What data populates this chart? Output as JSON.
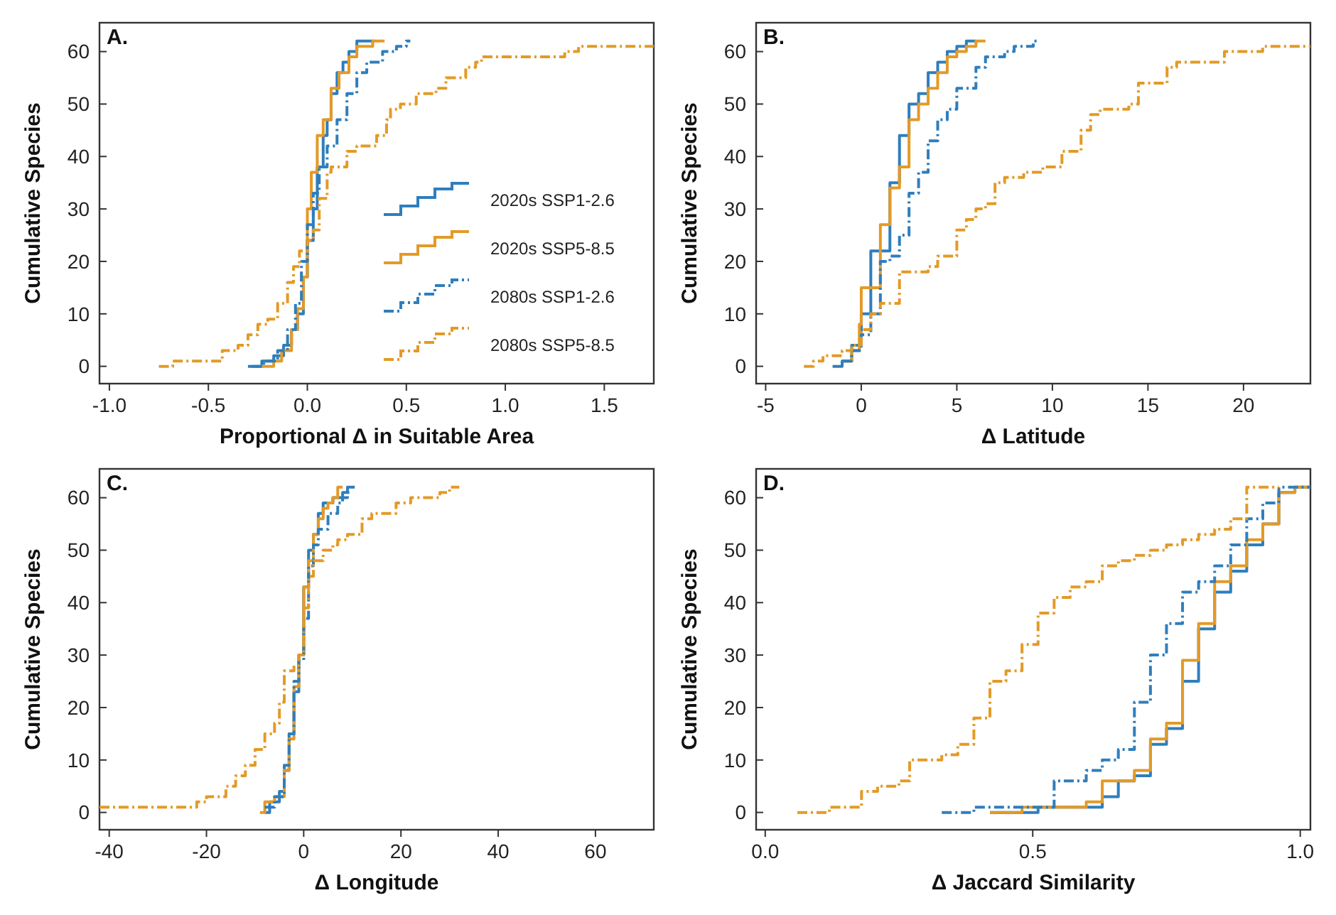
{
  "chart_data": [
    {
      "type": "step",
      "title": "A.",
      "xlabel": "Proportional Δ in Suitable Area",
      "ylabel": "Cumulative Species",
      "xlim": [
        -1.05,
        1.75
      ],
      "ylim": [
        -3.3,
        65.5
      ],
      "xticks": [
        {
          "value": -1,
          "label": "-1.0"
        },
        {
          "value": -0.5,
          "label": "-0.5"
        },
        {
          "value": 0,
          "label": "0.0"
        },
        {
          "value": 0.5,
          "label": "0.5"
        },
        {
          "value": 1,
          "label": "1.0"
        },
        {
          "value": 1.5,
          "label": "1.5"
        }
      ],
      "yticks": [
        0,
        10,
        20,
        30,
        40,
        50,
        60
      ],
      "grid": false,
      "legend": "bottom right",
      "series": [
        {
          "name": "2020s SSP1-2.6",
          "color": "#2f7ebc",
          "line_style": "solid",
          "x": [
            -0.3,
            -0.23,
            -0.17,
            -0.12,
            -0.08,
            -0.05,
            -0.02,
            0.0,
            0.03,
            0.05,
            0.08,
            0.1,
            0.12,
            0.15,
            0.18,
            0.21,
            0.25,
            0.34
          ],
          "values": [
            0,
            1,
            2,
            4,
            7,
            10,
            17,
            24,
            30,
            38,
            44,
            47,
            52,
            56,
            58,
            60,
            62,
            62
          ]
        },
        {
          "name": "2020s SSP5-8.5",
          "color": "#e39a27",
          "line_style": "solid",
          "x": [
            -0.25,
            -0.17,
            -0.13,
            -0.08,
            -0.05,
            -0.02,
            0.0,
            0.02,
            0.05,
            0.08,
            0.12,
            0.16,
            0.21,
            0.25,
            0.33,
            0.39
          ],
          "values": [
            0,
            1,
            3,
            7,
            11,
            17,
            30,
            37,
            44,
            47,
            53,
            56,
            59,
            61,
            62,
            62
          ]
        },
        {
          "name": "2080s SSP1-2.6",
          "color": "#2f7ebc",
          "line_style": "dashed",
          "x": [
            -0.28,
            -0.22,
            -0.15,
            -0.1,
            -0.06,
            -0.03,
            0.0,
            0.03,
            0.06,
            0.1,
            0.15,
            0.2,
            0.25,
            0.3,
            0.38,
            0.45,
            0.5,
            0.52
          ],
          "values": [
            0,
            1,
            3,
            7,
            12,
            20,
            27,
            33,
            38,
            42,
            47,
            52,
            56,
            58,
            60,
            61,
            62,
            62
          ]
        },
        {
          "name": "2080s SSP5-8.5",
          "color": "#e39a27",
          "line_style": "dashed",
          "x": [
            -0.75,
            -0.68,
            -0.43,
            -0.35,
            -0.3,
            -0.25,
            -0.2,
            -0.15,
            -0.1,
            -0.07,
            -0.04,
            0.0,
            0.03,
            0.06,
            0.1,
            0.12,
            0.2,
            0.25,
            0.35,
            0.4,
            0.42,
            0.47,
            0.55,
            0.65,
            0.7,
            0.8,
            0.85,
            0.88,
            1.3,
            1.37,
            1.75
          ],
          "values": [
            0,
            1,
            3,
            4,
            6,
            8,
            9,
            12,
            16,
            19,
            22,
            24,
            26,
            32,
            37,
            38,
            41,
            42,
            44,
            47,
            49,
            50,
            52,
            53,
            55,
            57,
            58,
            59,
            60,
            61,
            61
          ]
        }
      ]
    },
    {
      "type": "step",
      "title": "B.",
      "xlabel": "Δ Latitude",
      "ylabel": "Cumulative Species",
      "xlim": [
        -5.5,
        23.5
      ],
      "ylim": [
        -3.3,
        65.5
      ],
      "xticks": [
        -5,
        0,
        5,
        10,
        15,
        20
      ],
      "yticks": [
        0,
        10,
        20,
        30,
        40,
        50,
        60
      ],
      "grid": false,
      "legend": false,
      "series": [
        {
          "color": "#2f7ebc",
          "line_style": "solid",
          "x": [
            -1.5,
            -1.0,
            -0.5,
            0,
            0.5,
            1.5,
            2.0,
            2.5,
            3.0,
            3.5,
            4.0,
            4.5,
            5.0,
            5.5,
            6.0
          ],
          "values": [
            0,
            1,
            4,
            10,
            22,
            35,
            44,
            50,
            52,
            56,
            58,
            60,
            61,
            62,
            62
          ]
        },
        {
          "color": "#e39a27",
          "line_style": "solid",
          "x": [
            -1.0,
            -0.5,
            -0.1,
            0,
            1.0,
            1.5,
            2.0,
            2.5,
            3.0,
            3.5,
            4.0,
            4.5,
            5.0,
            5.5,
            6.0,
            6.5
          ],
          "values": [
            1,
            3,
            8,
            15,
            27,
            34,
            38,
            47,
            50,
            53,
            56,
            59,
            60,
            61,
            62,
            62
          ]
        },
        {
          "color": "#2f7ebc",
          "line_style": "dashed",
          "x": [
            -1.0,
            -0.5,
            0,
            0.5,
            1.0,
            1.5,
            2.0,
            2.5,
            3.0,
            3.5,
            4.0,
            4.5,
            5.0,
            6.0,
            6.5,
            7.5,
            8.0,
            9.0,
            9.3
          ],
          "values": [
            1,
            3,
            6,
            10,
            20,
            21,
            25,
            33,
            37,
            43,
            47,
            49,
            53,
            57,
            59,
            60,
            61,
            62,
            62
          ]
        },
        {
          "color": "#e39a27",
          "line_style": "dashed",
          "x": [
            -3.0,
            -2.5,
            -2.0,
            -1.0,
            -0.5,
            0,
            0.5,
            1.0,
            2.0,
            3.5,
            4.0,
            5.0,
            5.5,
            6.0,
            6.5,
            7.0,
            7.5,
            8.5,
            9.5,
            10.5,
            11.5,
            12.0,
            12.5,
            14.0,
            14.5,
            16.0,
            16.5,
            19.0,
            21.0,
            23.5
          ],
          "values": [
            0,
            1,
            2,
            3,
            4,
            7,
            10,
            12,
            18,
            19,
            21,
            26,
            28,
            30,
            31,
            35,
            36,
            37,
            38,
            41,
            45,
            48,
            49,
            50,
            54,
            57,
            58,
            60,
            61,
            61
          ]
        }
      ]
    },
    {
      "type": "step",
      "title": "C.",
      "xlabel": "Δ Longitude",
      "ylabel": "Cumulative Species",
      "xlim": [
        -42,
        72
      ],
      "ylim": [
        -3.3,
        65.5
      ],
      "xticks": [
        -40,
        -20,
        0,
        20,
        40,
        60
      ],
      "yticks": [
        0,
        10,
        20,
        30,
        40,
        50,
        60
      ],
      "grid": false,
      "legend": false,
      "series": [
        {
          "color": "#2f7ebc",
          "line_style": "solid",
          "x": [
            -8,
            -7,
            -5,
            -4,
            -3,
            -2,
            -1,
            0,
            1,
            2,
            3,
            4,
            6,
            8,
            9,
            10.5
          ],
          "values": [
            0,
            2,
            4,
            8,
            15,
            23,
            30,
            43,
            50,
            53,
            57,
            59,
            60,
            61,
            62,
            62
          ]
        },
        {
          "color": "#e39a27",
          "line_style": "solid",
          "x": [
            -9,
            -8,
            -6,
            -4,
            -3,
            -2,
            -1,
            0,
            1,
            2,
            3,
            4,
            5,
            6,
            7,
            8
          ],
          "values": [
            0,
            2,
            3,
            8,
            14,
            24,
            30,
            43,
            48,
            53,
            56,
            58,
            59,
            60,
            62,
            62
          ]
        },
        {
          "color": "#2f7ebc",
          "line_style": "dashed",
          "x": [
            -8,
            -6,
            -4,
            -3,
            -2,
            -1,
            0,
            1,
            2,
            3,
            5,
            7,
            8,
            9,
            10
          ],
          "values": [
            1,
            3,
            9,
            15,
            25,
            29,
            37,
            47,
            51,
            54,
            57,
            59,
            60,
            61,
            61
          ]
        },
        {
          "color": "#e39a27",
          "line_style": "dashed",
          "x": [
            -42,
            -22,
            -20,
            -16,
            -14,
            -12,
            -10,
            -8,
            -6,
            -5,
            -4,
            -2,
            -1,
            0,
            1,
            2,
            4,
            6,
            7,
            9,
            12,
            14,
            19,
            22,
            28,
            30,
            32
          ],
          "values": [
            1,
            2,
            3,
            5,
            7,
            9,
            12,
            15,
            17,
            21,
            27,
            28,
            30,
            39,
            45,
            48,
            50,
            51,
            52,
            53,
            56,
            57,
            59,
            60,
            61,
            62,
            62
          ]
        }
      ]
    },
    {
      "type": "step",
      "title": "D.",
      "xlabel": "Δ Jaccard Similarity",
      "ylabel": "Cumulative Species",
      "xlim": [
        -0.017,
        1.019
      ],
      "ylim": [
        -3.3,
        65.5
      ],
      "xticks": [
        {
          "value": 0,
          "label": "0.0"
        },
        {
          "value": 0.5,
          "label": "0.5"
        },
        {
          "value": 1,
          "label": "1.0"
        }
      ],
      "yticks": [
        0,
        10,
        20,
        30,
        40,
        50,
        60
      ],
      "grid": false,
      "legend": false,
      "series": [
        {
          "color": "#2f7ebc",
          "line_style": "solid",
          "x": [
            0.42,
            0.51,
            0.63,
            0.66,
            0.69,
            0.72,
            0.75,
            0.78,
            0.81,
            0.84,
            0.87,
            0.9,
            0.93,
            0.96,
            0.99,
            1.019
          ],
          "values": [
            0,
            1,
            3,
            6,
            7,
            13,
            16,
            25,
            35,
            42,
            46,
            51,
            55,
            61,
            62,
            62
          ]
        },
        {
          "color": "#e39a27",
          "line_style": "solid",
          "x": [
            0.42,
            0.48,
            0.6,
            0.63,
            0.69,
            0.72,
            0.75,
            0.78,
            0.81,
            0.84,
            0.87,
            0.9,
            0.93,
            0.96,
            0.99,
            1.019
          ],
          "values": [
            0,
            1,
            2,
            6,
            8,
            14,
            17,
            29,
            36,
            44,
            47,
            52,
            55,
            61,
            62,
            62
          ]
        },
        {
          "color": "#2f7ebc",
          "line_style": "dashed",
          "x": [
            0.33,
            0.39,
            0.54,
            0.6,
            0.63,
            0.66,
            0.69,
            0.72,
            0.75,
            0.78,
            0.81,
            0.84,
            0.87,
            0.9,
            0.93,
            0.96,
            1.019
          ],
          "values": [
            0,
            1,
            6,
            8,
            10,
            12,
            21,
            30,
            36,
            42,
            44,
            47,
            51,
            56,
            59,
            62,
            62
          ]
        },
        {
          "color": "#e39a27",
          "line_style": "dashed",
          "x": [
            0.06,
            0.12,
            0.18,
            0.21,
            0.25,
            0.27,
            0.33,
            0.36,
            0.39,
            0.42,
            0.45,
            0.48,
            0.51,
            0.54,
            0.57,
            0.6,
            0.63,
            0.66,
            0.69,
            0.72,
            0.75,
            0.78,
            0.81,
            0.84,
            0.87,
            0.9,
            0.96
          ],
          "values": [
            0,
            1,
            4,
            5,
            6,
            10,
            11,
            13,
            18,
            25,
            27,
            32,
            38,
            41,
            43,
            44,
            47,
            48,
            49,
            50,
            51,
            52,
            53,
            54,
            56,
            62,
            62
          ]
        }
      ]
    }
  ]
}
